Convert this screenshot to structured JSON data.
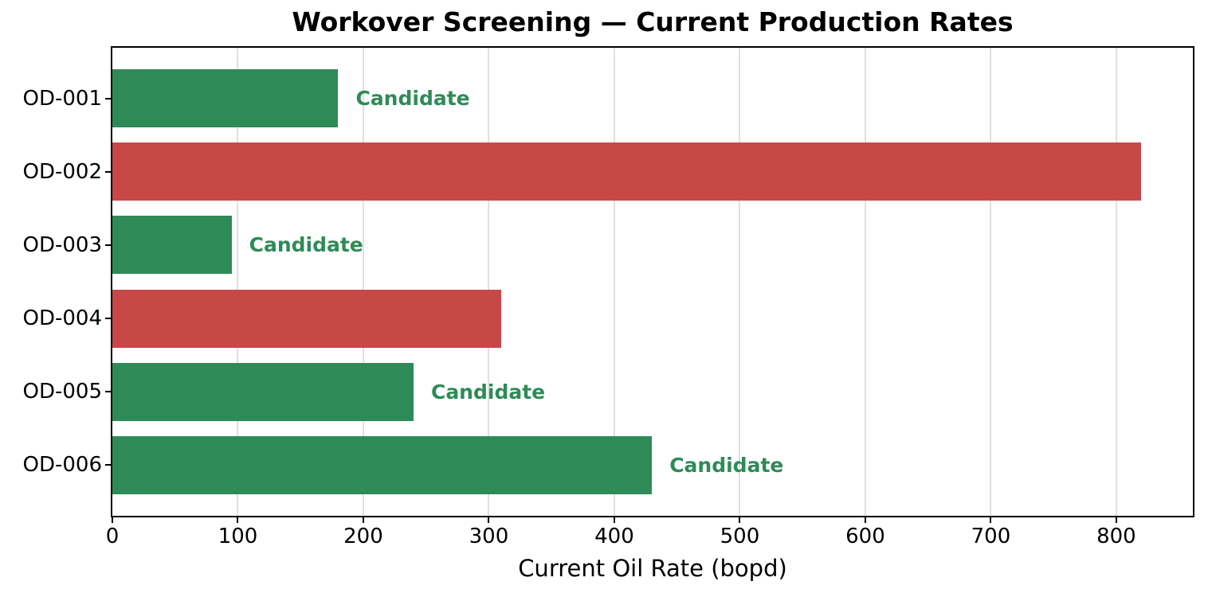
{
  "title": "Workover Screening — Current Production Rates",
  "xlabel": "Current Oil Rate (bopd)",
  "colors": {
    "candidate_green": "#2E8B57",
    "non_candidate_red": "#C84848",
    "annotation_text": "#2E8B57",
    "gridline": "#E0E0E0",
    "axis": "#000000"
  },
  "chart_data": {
    "type": "bar",
    "orientation": "horizontal",
    "title": "Workover Screening — Current Production Rates",
    "xlabel": "Current Oil Rate (bopd)",
    "ylabel": "",
    "categories": [
      "OD-001",
      "OD-002",
      "OD-003",
      "OD-004",
      "OD-005",
      "OD-006"
    ],
    "values": [
      180,
      820,
      95,
      310,
      240,
      430
    ],
    "candidate_flags": [
      true,
      false,
      true,
      false,
      true,
      true
    ],
    "bar_colors": [
      "#2E8B57",
      "#C84848",
      "#2E8B57",
      "#C84848",
      "#2E8B57",
      "#2E8B57"
    ],
    "annotations": [
      "Candidate",
      "",
      "Candidate",
      "",
      "Candidate",
      "Candidate"
    ],
    "annotation_label": "Candidate",
    "xlim": [
      0,
      861
    ],
    "xticks": [
      0,
      100,
      200,
      300,
      400,
      500,
      600,
      700,
      800
    ],
    "grid": "vertical",
    "legend": "none"
  }
}
